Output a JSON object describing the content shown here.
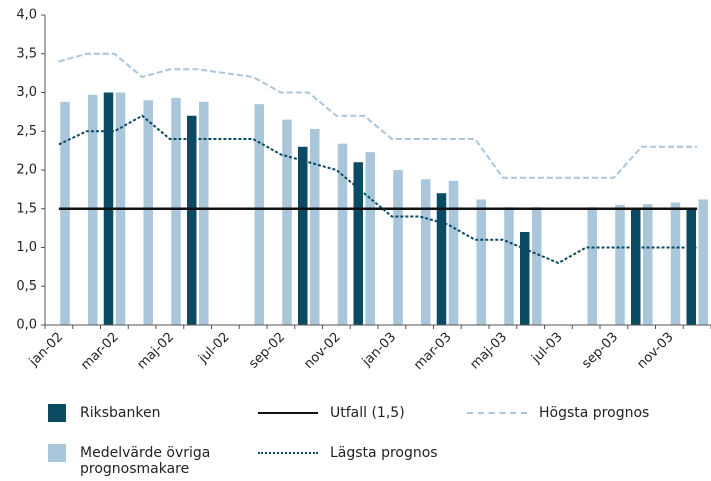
{
  "chart_data": {
    "type": "bar",
    "categories": [
      "jan-02",
      null,
      "mar-02",
      null,
      "maj-02",
      null,
      "jul-02",
      null,
      "sep-02",
      null,
      "nov-02",
      null,
      "jan-03",
      null,
      "mar-03",
      null,
      "maj-03",
      null,
      "jul-03",
      null,
      "sep-03",
      null,
      "nov-03",
      null
    ],
    "ylim": [
      0,
      4
    ],
    "yticks": [
      {
        "value": 0,
        "label": "0,0"
      },
      {
        "value": 0.5,
        "label": "0,5"
      },
      {
        "value": 1,
        "label": "1,0"
      },
      {
        "value": 1.5,
        "label": "1,5"
      },
      {
        "value": 2,
        "label": "2,0"
      },
      {
        "value": 2.5,
        "label": "2,5"
      },
      {
        "value": 3,
        "label": "3,0"
      },
      {
        "value": 3.5,
        "label": "3,5"
      },
      {
        "value": 4,
        "label": "4,0"
      }
    ],
    "grid": false,
    "series": [
      {
        "name": "Riksbanken",
        "mark": "bar",
        "color": "#0b4a63",
        "values": [
          null,
          null,
          3.0,
          null,
          null,
          2.7,
          null,
          null,
          null,
          2.3,
          null,
          2.1,
          null,
          null,
          1.7,
          null,
          null,
          1.2,
          null,
          null,
          null,
          1.5,
          null,
          1.5
        ]
      },
      {
        "name": "Medelvärde övriga prognosmakare",
        "mark": "bar",
        "color": "#a9c6db",
        "values": [
          2.88,
          2.97,
          3.0,
          2.9,
          2.93,
          2.88,
          null,
          2.85,
          2.65,
          2.53,
          2.34,
          2.23,
          2.0,
          1.88,
          1.86,
          1.62,
          1.52,
          1.52,
          null,
          1.52,
          1.55,
          1.56,
          1.58,
          1.62
        ]
      },
      {
        "name": "Utfall (1,5)",
        "mark": "line",
        "dash": "solid",
        "color": "#111111",
        "values": [
          1.5,
          1.5,
          1.5,
          1.5,
          1.5,
          1.5,
          1.5,
          1.5,
          1.5,
          1.5,
          1.5,
          1.5,
          1.5,
          1.5,
          1.5,
          1.5,
          1.5,
          1.5,
          1.5,
          1.5,
          1.5,
          1.5,
          1.5,
          1.5
        ]
      },
      {
        "name": "Lägsta prognos",
        "mark": "line",
        "dash": "dotted",
        "color": "#0b4a63",
        "values": [
          2.33,
          2.5,
          2.5,
          2.7,
          2.4,
          2.4,
          2.4,
          2.4,
          2.2,
          2.1,
          2.0,
          1.7,
          1.4,
          1.4,
          1.3,
          1.1,
          1.1,
          0.95,
          0.8,
          1.0,
          1.0,
          1.0,
          1.0,
          1.0
        ]
      },
      {
        "name": "Högsta prognos",
        "mark": "line",
        "dash": "dashed",
        "color": "#a9c6db",
        "values": [
          3.4,
          3.5,
          3.5,
          3.2,
          3.3,
          3.3,
          3.25,
          3.2,
          3.0,
          3.0,
          2.7,
          2.7,
          2.4,
          2.4,
          2.4,
          2.4,
          1.9,
          1.9,
          1.9,
          1.9,
          1.9,
          2.3,
          2.3,
          2.3
        ]
      }
    ],
    "legend": "bottom"
  }
}
